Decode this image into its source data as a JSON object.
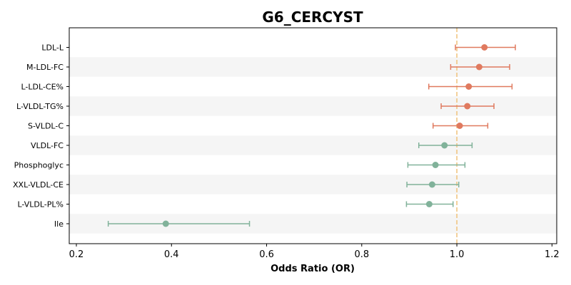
{
  "chart_data": {
    "type": "forest",
    "title": "G6_CERCYST",
    "xlabel": "Odds Ratio (OR)",
    "ylabel": "",
    "xlim": [
      0.185,
      1.21
    ],
    "xticks": [
      0.2,
      0.4,
      0.6,
      0.8,
      1.0,
      1.2
    ],
    "xtick_labels": [
      "0.2",
      "0.4",
      "0.6",
      "0.8",
      "1.0",
      "1.2"
    ],
    "reference_line": 1.0,
    "reference_color": "#f0c27a",
    "positive_color": "#e07a5f",
    "negative_color": "#81b29a",
    "band_color": "#f5f5f5",
    "grid": false,
    "rows": [
      {
        "label": "LDL-L",
        "or": 1.058,
        "ci_low": 0.997,
        "ci_high": 1.123
      },
      {
        "label": "M-LDL-FC",
        "or": 1.047,
        "ci_low": 0.987,
        "ci_high": 1.111
      },
      {
        "label": "L-LDL-CE%",
        "or": 1.025,
        "ci_low": 0.941,
        "ci_high": 1.116
      },
      {
        "label": "L-VLDL-TG%",
        "or": 1.022,
        "ci_low": 0.967,
        "ci_high": 1.078
      },
      {
        "label": "S-VLDL-C",
        "or": 1.006,
        "ci_low": 0.95,
        "ci_high": 1.065
      },
      {
        "label": "VLDL-FC",
        "or": 0.974,
        "ci_low": 0.92,
        "ci_high": 1.032
      },
      {
        "label": "Phosphoglyc",
        "or": 0.955,
        "ci_low": 0.897,
        "ci_high": 1.017
      },
      {
        "label": "XXL-VLDL-CE",
        "or": 0.948,
        "ci_low": 0.895,
        "ci_high": 1.004
      },
      {
        "label": "L-VLDL-PL%",
        "or": 0.942,
        "ci_low": 0.894,
        "ci_high": 0.992
      },
      {
        "label": "Ile",
        "or": 0.388,
        "ci_low": 0.267,
        "ci_high": 0.564
      }
    ]
  }
}
